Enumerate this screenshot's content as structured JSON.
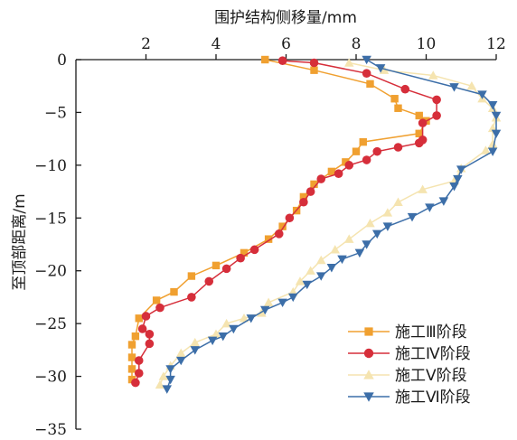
{
  "chart_data": {
    "type": "line",
    "title": "",
    "xlabel": "围护结构侧移量/mm",
    "ylabel": "至顶部距离/m",
    "x_axis_position": "top",
    "xlim": [
      0,
      12
    ],
    "ylim": [
      -35,
      0
    ],
    "xticks": [
      "2",
      "4",
      "6",
      "8",
      "10",
      "12"
    ],
    "yticks": [
      "0",
      "−5",
      "−10",
      "−15",
      "−20",
      "−25",
      "−30",
      "−35"
    ],
    "grid": false,
    "legend_position": "bottom-right",
    "series": [
      {
        "name": "施工Ⅲ阶段",
        "color": "#F0A030",
        "marker": "square",
        "points": [
          [
            5.4,
            0
          ],
          [
            6.8,
            -1.0
          ],
          [
            8.4,
            -2.3
          ],
          [
            9.1,
            -3.7
          ],
          [
            9.2,
            -4.6
          ],
          [
            9.8,
            -5.3
          ],
          [
            10.0,
            -5.8
          ],
          [
            9.8,
            -7.0
          ],
          [
            8.2,
            -7.8
          ],
          [
            8.0,
            -8.7
          ],
          [
            7.7,
            -9.7
          ],
          [
            7.3,
            -10.6
          ],
          [
            6.8,
            -11.8
          ],
          [
            6.5,
            -13.0
          ],
          [
            6.3,
            -14.3
          ],
          [
            5.9,
            -15.8
          ],
          [
            5.5,
            -17.0
          ],
          [
            4.8,
            -18.3
          ],
          [
            4.0,
            -19.5
          ],
          [
            3.3,
            -20.5
          ],
          [
            2.8,
            -22.0
          ],
          [
            2.3,
            -22.8
          ],
          [
            1.8,
            -24.5
          ],
          [
            1.7,
            -26.2
          ],
          [
            1.6,
            -27.0
          ],
          [
            1.6,
            -28.2
          ],
          [
            1.6,
            -29.3
          ],
          [
            1.6,
            -30.3
          ]
        ]
      },
      {
        "name": "施工Ⅳ阶段",
        "color": "#D62E3A",
        "marker": "circle",
        "points": [
          [
            5.9,
            -0.1
          ],
          [
            6.8,
            -0.3
          ],
          [
            8.3,
            -1.3
          ],
          [
            9.4,
            -2.8
          ],
          [
            10.3,
            -3.8
          ],
          [
            10.3,
            -5.3
          ],
          [
            9.9,
            -6.0
          ],
          [
            9.9,
            -7.6
          ],
          [
            9.8,
            -7.9
          ],
          [
            9.2,
            -8.3
          ],
          [
            8.6,
            -8.7
          ],
          [
            8.3,
            -9.5
          ],
          [
            7.8,
            -10.0
          ],
          [
            7.5,
            -10.8
          ],
          [
            7.0,
            -11.3
          ],
          [
            6.7,
            -12.5
          ],
          [
            6.5,
            -13.5
          ],
          [
            6.1,
            -15.0
          ],
          [
            5.8,
            -16.5
          ],
          [
            5.1,
            -18.0
          ],
          [
            4.7,
            -18.8
          ],
          [
            4.3,
            -19.8
          ],
          [
            3.8,
            -21.0
          ],
          [
            3.3,
            -22.5
          ],
          [
            2.4,
            -23.5
          ],
          [
            2.0,
            -24.3
          ],
          [
            1.9,
            -25.5
          ],
          [
            2.1,
            -26.0
          ],
          [
            2.1,
            -26.9
          ],
          [
            1.8,
            -28.5
          ],
          [
            1.8,
            -29.7
          ],
          [
            1.7,
            -30.6
          ]
        ]
      },
      {
        "name": "施工Ⅴ阶段",
        "color": "#F5E4B0",
        "marker": "triangle-up",
        "points": [
          [
            7.8,
            -0.3
          ],
          [
            8.8,
            -1.0
          ],
          [
            10.2,
            -1.5
          ],
          [
            11.3,
            -2.5
          ],
          [
            11.6,
            -3.7
          ],
          [
            11.9,
            -4.6
          ],
          [
            12.0,
            -5.5
          ],
          [
            11.9,
            -6.5
          ],
          [
            11.9,
            -8.0
          ],
          [
            11.7,
            -8.6
          ],
          [
            11.0,
            -10.3
          ],
          [
            10.8,
            -11.5
          ],
          [
            9.9,
            -12.3
          ],
          [
            9.2,
            -13.5
          ],
          [
            8.9,
            -14.5
          ],
          [
            8.4,
            -15.5
          ],
          [
            7.8,
            -17.0
          ],
          [
            7.4,
            -18.0
          ],
          [
            7.0,
            -19.0
          ],
          [
            6.7,
            -20.0
          ],
          [
            6.4,
            -21.0
          ],
          [
            6.2,
            -22.0
          ],
          [
            5.5,
            -23.0
          ],
          [
            5.3,
            -24.0
          ],
          [
            4.8,
            -24.5
          ],
          [
            4.3,
            -25.0
          ],
          [
            4.0,
            -26.0
          ],
          [
            3.4,
            -26.8
          ],
          [
            3.0,
            -27.8
          ],
          [
            2.7,
            -29.0
          ],
          [
            2.5,
            -30.0
          ],
          [
            2.4,
            -30.8
          ]
        ]
      },
      {
        "name": "施工Ⅵ阶段",
        "color": "#3C6EA8",
        "marker": "triangle-down",
        "points": [
          [
            8.3,
            0
          ],
          [
            8.7,
            -0.8
          ],
          [
            10.8,
            -2.6
          ],
          [
            11.6,
            -3.3
          ],
          [
            11.9,
            -4.3
          ],
          [
            12.0,
            -5.3
          ],
          [
            12.0,
            -7.0
          ],
          [
            11.9,
            -8.7
          ],
          [
            11.0,
            -10.4
          ],
          [
            10.9,
            -11.3
          ],
          [
            10.8,
            -12.0
          ],
          [
            10.5,
            -13.4
          ],
          [
            10.1,
            -14.0
          ],
          [
            9.6,
            -14.9
          ],
          [
            8.9,
            -15.8
          ],
          [
            8.6,
            -16.5
          ],
          [
            8.3,
            -17.5
          ],
          [
            8.1,
            -18.3
          ],
          [
            7.6,
            -18.9
          ],
          [
            7.3,
            -19.7
          ],
          [
            7.0,
            -20.5
          ],
          [
            6.6,
            -21.3
          ],
          [
            6.2,
            -22.5
          ],
          [
            5.9,
            -23.0
          ],
          [
            5.4,
            -23.7
          ],
          [
            5.0,
            -24.5
          ],
          [
            4.5,
            -25.5
          ],
          [
            4.2,
            -26.2
          ],
          [
            3.9,
            -26.6
          ],
          [
            3.4,
            -27.5
          ],
          [
            3.0,
            -28.5
          ],
          [
            2.7,
            -29.3
          ],
          [
            2.7,
            -30.3
          ],
          [
            2.6,
            -31.2
          ]
        ]
      }
    ]
  }
}
